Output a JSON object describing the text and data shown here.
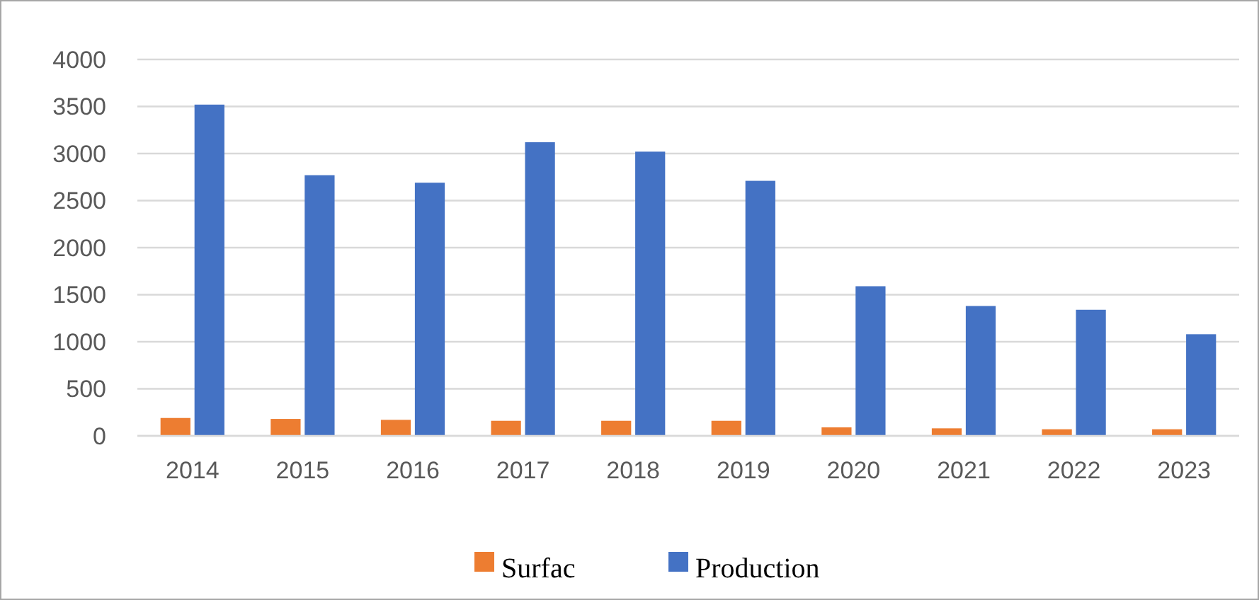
{
  "chart_data": {
    "type": "bar",
    "categories": [
      "2014",
      "2015",
      "2016",
      "2017",
      "2018",
      "2019",
      "2020",
      "2021",
      "2022",
      "2023"
    ],
    "series": [
      {
        "name": "Surfac",
        "color": "#ed7d31",
        "values": [
          190,
          180,
          170,
          160,
          160,
          160,
          90,
          80,
          70,
          70
        ]
      },
      {
        "name": "Production",
        "color": "#4472c4",
        "values": [
          3520,
          2770,
          2690,
          3120,
          3020,
          2710,
          1590,
          1380,
          1340,
          1080
        ]
      }
    ],
    "ylim": [
      0,
      4000
    ],
    "yticks": [
      0,
      500,
      1000,
      1500,
      2000,
      2500,
      3000,
      3500,
      4000
    ],
    "grid": "y",
    "legend": "bottom"
  }
}
